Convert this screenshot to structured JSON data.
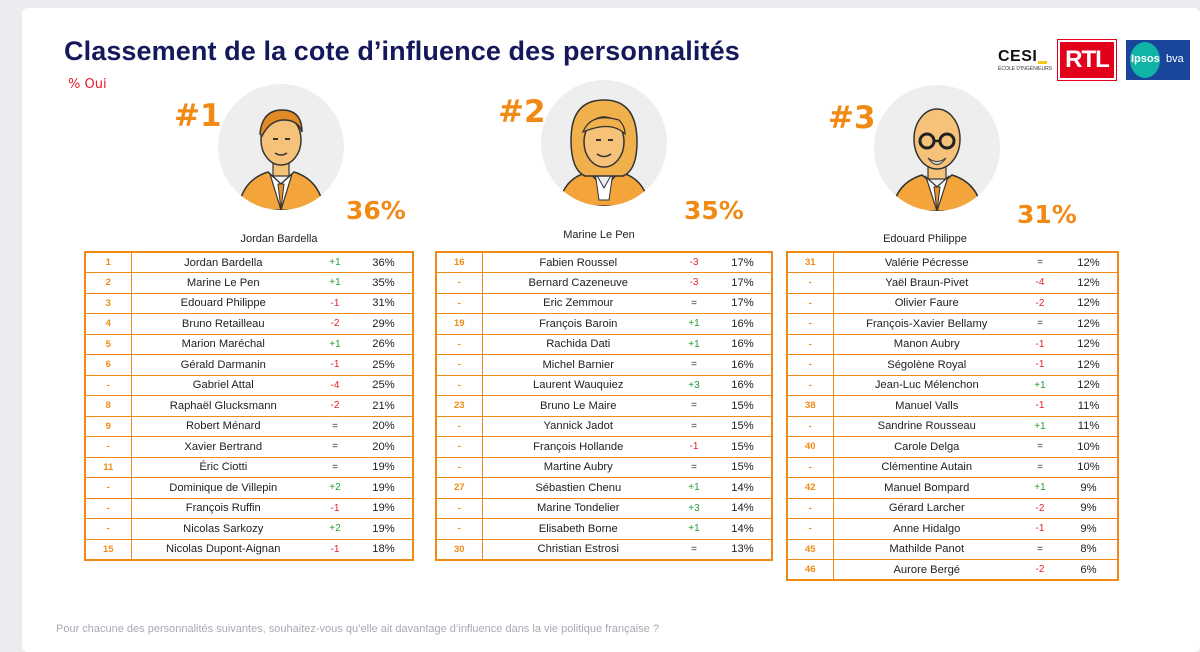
{
  "title": "Classement de la cote d’influence des personnalités",
  "subtitle": "% Oui",
  "logos": {
    "cesi": "CESI",
    "cesi_sub": "ÉCOLE D'INGÉNIEURS",
    "rtl": "RTL",
    "ipsos": "Ipsos",
    "bva": "bva"
  },
  "podium": [
    {
      "rank": "#1",
      "name": "Jordan Bardella",
      "score": "36%"
    },
    {
      "rank": "#2",
      "name": "Marine Le Pen",
      "score": "35%"
    },
    {
      "rank": "#3",
      "name": "Edouard Philippe",
      "score": "31%"
    }
  ],
  "tables": [
    [
      {
        "pos": "1",
        "name": "Jordan Bardella",
        "evo": "+1",
        "val": "36%"
      },
      {
        "pos": "2",
        "name": "Marine Le Pen",
        "evo": "+1",
        "val": "35%"
      },
      {
        "pos": "3",
        "name": "Edouard Philippe",
        "evo": "-1",
        "val": "31%"
      },
      {
        "pos": "4",
        "name": "Bruno Retailleau",
        "evo": "-2",
        "val": "29%"
      },
      {
        "pos": "5",
        "name": "Marion Maréchal",
        "evo": "+1",
        "val": "26%"
      },
      {
        "pos": "6",
        "name": "Gérald Darmanin",
        "evo": "-1",
        "val": "25%"
      },
      {
        "pos": "-",
        "name": "Gabriel Attal",
        "evo": "-4",
        "val": "25%"
      },
      {
        "pos": "8",
        "name": "Raphaël Glucksmann",
        "evo": "-2",
        "val": "21%"
      },
      {
        "pos": "9",
        "name": "Robert Ménard",
        "evo": "=",
        "val": "20%"
      },
      {
        "pos": "-",
        "name": "Xavier Bertrand",
        "evo": "=",
        "val": "20%"
      },
      {
        "pos": "11",
        "name": "Éric Ciotti",
        "evo": "=",
        "val": "19%"
      },
      {
        "pos": "-",
        "name": "Dominique de Villepin",
        "evo": "+2",
        "val": "19%"
      },
      {
        "pos": "-",
        "name": "François Ruffin",
        "evo": "-1",
        "val": "19%"
      },
      {
        "pos": "-",
        "name": "Nicolas Sarkozy",
        "evo": "+2",
        "val": "19%"
      },
      {
        "pos": "15",
        "name": "Nicolas Dupont-Aignan",
        "evo": "-1",
        "val": "18%"
      }
    ],
    [
      {
        "pos": "16",
        "name": "Fabien Roussel",
        "evo": "-3",
        "val": "17%"
      },
      {
        "pos": "-",
        "name": "Bernard Cazeneuve",
        "evo": "-3",
        "val": "17%"
      },
      {
        "pos": "-",
        "name": "Eric Zemmour",
        "evo": "=",
        "val": "17%"
      },
      {
        "pos": "19",
        "name": "François Baroin",
        "evo": "+1",
        "val": "16%"
      },
      {
        "pos": "-",
        "name": "Rachida Dati",
        "evo": "+1",
        "val": "16%"
      },
      {
        "pos": "-",
        "name": "Michel Barnier",
        "evo": "=",
        "val": "16%"
      },
      {
        "pos": "-",
        "name": "Laurent Wauquiez",
        "evo": "+3",
        "val": "16%"
      },
      {
        "pos": "23",
        "name": "Bruno Le Maire",
        "evo": "=",
        "val": "15%"
      },
      {
        "pos": "-",
        "name": "Yannick Jadot",
        "evo": "=",
        "val": "15%"
      },
      {
        "pos": "-",
        "name": "François Hollande",
        "evo": "-1",
        "val": "15%"
      },
      {
        "pos": "-",
        "name": "Martine Aubry",
        "evo": "=",
        "val": "15%"
      },
      {
        "pos": "27",
        "name": "Sébastien Chenu",
        "evo": "+1",
        "val": "14%"
      },
      {
        "pos": "-",
        "name": "Marine Tondelier",
        "evo": "+3",
        "val": "14%"
      },
      {
        "pos": "-",
        "name": "Elisabeth Borne",
        "evo": "+1",
        "val": "14%"
      },
      {
        "pos": "30",
        "name": "Christian Estrosi",
        "evo": "=",
        "val": "13%"
      }
    ],
    [
      {
        "pos": "31",
        "name": "Valérie Pécresse",
        "evo": "=",
        "val": "12%"
      },
      {
        "pos": "-",
        "name": "Yaël Braun-Pivet",
        "evo": "-4",
        "val": "12%"
      },
      {
        "pos": "-",
        "name": "Olivier Faure",
        "evo": "-2",
        "val": "12%"
      },
      {
        "pos": "-",
        "name": "François-Xavier Bellamy",
        "evo": "=",
        "val": "12%"
      },
      {
        "pos": "-",
        "name": "Manon Aubry",
        "evo": "-1",
        "val": "12%"
      },
      {
        "pos": "-",
        "name": "Ségolène Royal",
        "evo": "-1",
        "val": "12%"
      },
      {
        "pos": "-",
        "name": "Jean-Luc Mélenchon",
        "evo": "+1",
        "val": "12%"
      },
      {
        "pos": "38",
        "name": "Manuel Valls",
        "evo": "-1",
        "val": "11%"
      },
      {
        "pos": "-",
        "name": "Sandrine Rousseau",
        "evo": "+1",
        "val": "11%"
      },
      {
        "pos": "40",
        "name": "Carole Delga",
        "evo": "=",
        "val": "10%"
      },
      {
        "pos": "-",
        "name": "Clémentine Autain",
        "evo": "=",
        "val": "10%"
      },
      {
        "pos": "42",
        "name": "Manuel Bompard",
        "evo": "+1",
        "val": "9%"
      },
      {
        "pos": "-",
        "name": "Gérard Larcher",
        "evo": "-2",
        "val": "9%"
      },
      {
        "pos": "-",
        "name": "Anne Hidalgo",
        "evo": "-1",
        "val": "9%"
      },
      {
        "pos": "45",
        "name": "Mathilde Panot",
        "evo": "=",
        "val": "8%"
      },
      {
        "pos": "46",
        "name": "Aurore Bergé",
        "evo": "-2",
        "val": "6%"
      }
    ]
  ],
  "footnote": "Pour chacune des personnalités suivantes, souhaitez-vous qu’elle ait davantage d’influence dans la vie politique française ?",
  "colors": {
    "accent": "#f08a14",
    "title": "#15185a",
    "up": "#1f9e3a",
    "down": "#e0232a"
  }
}
